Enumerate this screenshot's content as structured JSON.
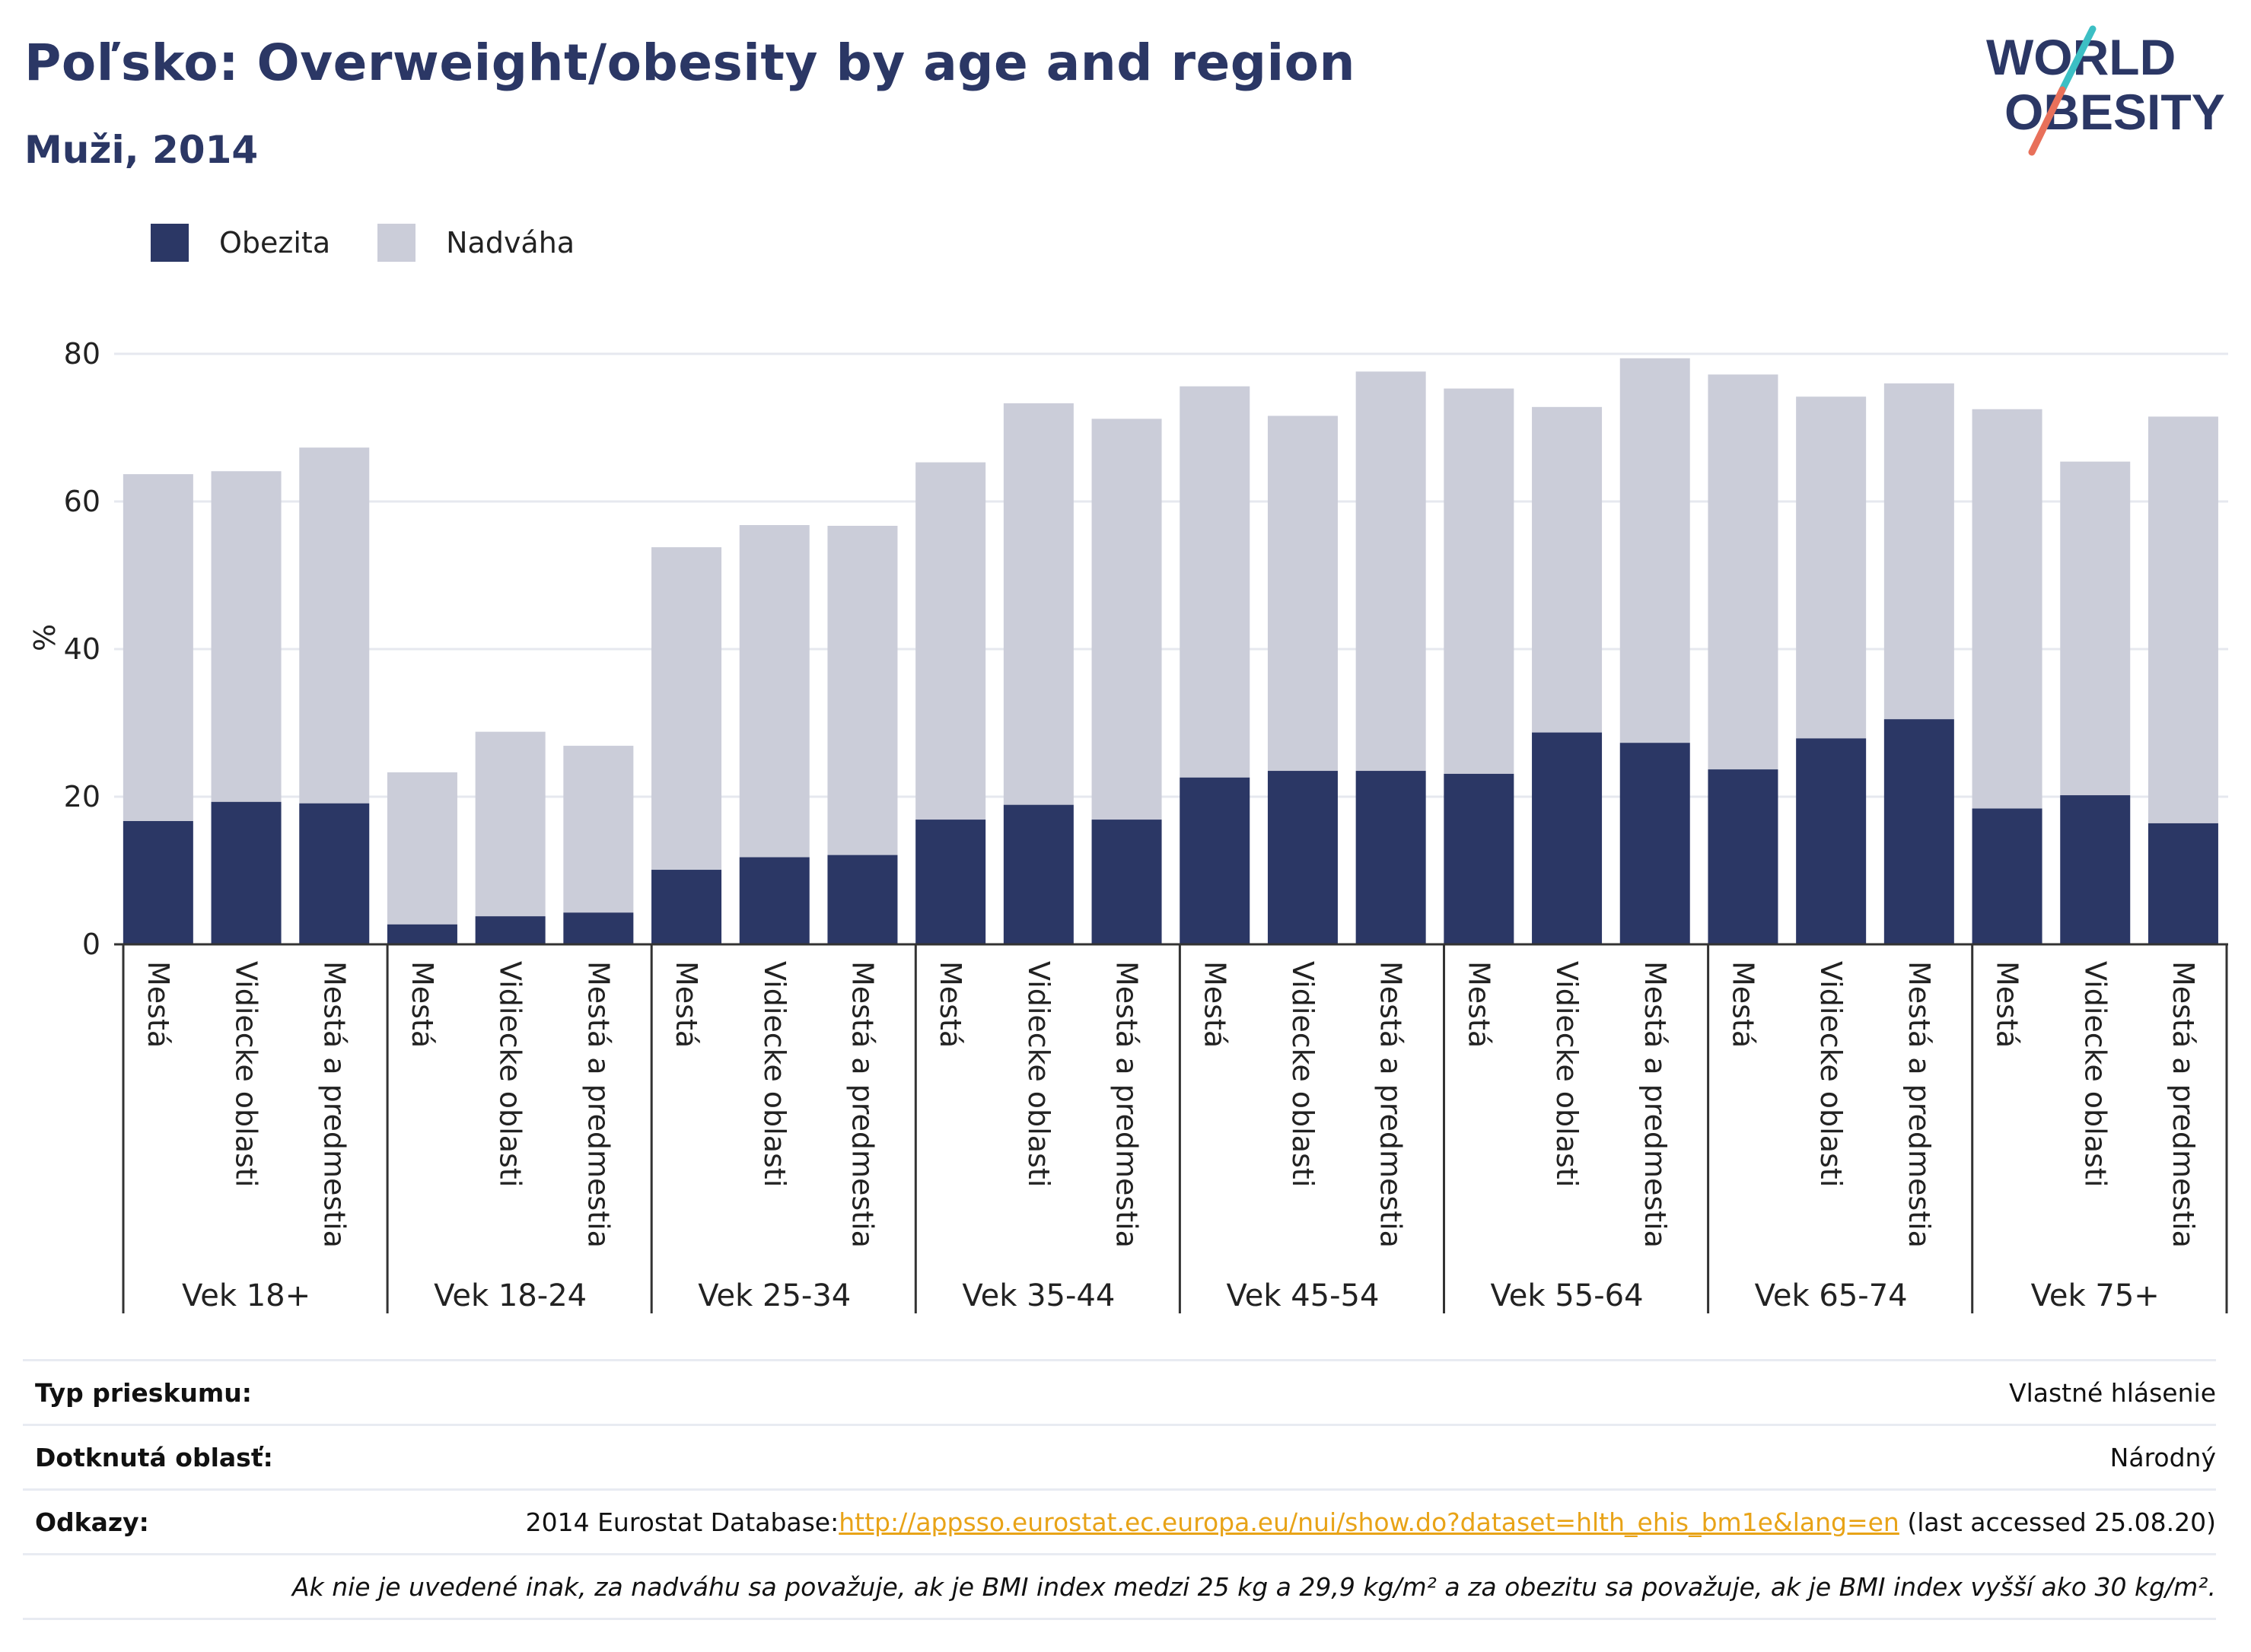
{
  "title": "Poľsko: Overweight/obesity by age and region",
  "subtitle": "Muži, 2014",
  "logo": {
    "line1": "WORLD",
    "line2": "OBESITY"
  },
  "colors": {
    "obesity": "#2b3765",
    "overweight": "#cbcdd9",
    "title": "#2b3765",
    "link": "#e8a317"
  },
  "legend": [
    {
      "label": "Obezita",
      "color": "#2b3765"
    },
    {
      "label": "Nadváha",
      "color": "#cbcdd9"
    }
  ],
  "chart_data": {
    "type": "bar",
    "stacked": true,
    "ylabel": "%",
    "ylim": [
      0,
      80
    ],
    "yticks": [
      0,
      20,
      40,
      60,
      80
    ],
    "grid": true,
    "legend_position": "top-left",
    "groups": [
      {
        "label": "Vek 18+",
        "bars": [
          {
            "category": "Mestá",
            "obesity": 16.7,
            "total": 63.7
          },
          {
            "category": "Vidiecke oblasti",
            "obesity": 19.3,
            "total": 64.1
          },
          {
            "category": "Mestá a predmestia",
            "obesity": 19.1,
            "total": 67.3
          }
        ]
      },
      {
        "label": "Vek 18-24",
        "bars": [
          {
            "category": "Mestá",
            "obesity": 2.7,
            "total": 23.3
          },
          {
            "category": "Vidiecke oblasti",
            "obesity": 3.8,
            "total": 28.8
          },
          {
            "category": "Mestá a predmestia",
            "obesity": 4.3,
            "total": 26.9
          }
        ]
      },
      {
        "label": "Vek 25-34",
        "bars": [
          {
            "category": "Mestá",
            "obesity": 10.1,
            "total": 53.8
          },
          {
            "category": "Vidiecke oblasti",
            "obesity": 11.8,
            "total": 56.8
          },
          {
            "category": "Mestá a predmestia",
            "obesity": 12.1,
            "total": 56.7
          }
        ]
      },
      {
        "label": "Vek 35-44",
        "bars": [
          {
            "category": "Mestá",
            "obesity": 16.9,
            "total": 65.3
          },
          {
            "category": "Vidiecke oblasti",
            "obesity": 18.9,
            "total": 73.3
          },
          {
            "category": "Mestá a predmestia",
            "obesity": 16.9,
            "total": 71.2
          }
        ]
      },
      {
        "label": "Vek 45-54",
        "bars": [
          {
            "category": "Mestá",
            "obesity": 22.6,
            "total": 75.6
          },
          {
            "category": "Vidiecke oblasti",
            "obesity": 23.5,
            "total": 71.6
          },
          {
            "category": "Mestá a predmestia",
            "obesity": 23.5,
            "total": 77.6
          }
        ]
      },
      {
        "label": "Vek 55-64",
        "bars": [
          {
            "category": "Mestá",
            "obesity": 23.1,
            "total": 75.3
          },
          {
            "category": "Vidiecke oblasti",
            "obesity": 28.7,
            "total": 72.8
          },
          {
            "category": "Mestá a predmestia",
            "obesity": 27.3,
            "total": 79.4
          }
        ]
      },
      {
        "label": "Vek 65-74",
        "bars": [
          {
            "category": "Mestá",
            "obesity": 23.7,
            "total": 77.2
          },
          {
            "category": "Vidiecke oblasti",
            "obesity": 27.9,
            "total": 74.2
          },
          {
            "category": "Mestá a predmestia",
            "obesity": 30.5,
            "total": 76.0
          }
        ]
      },
      {
        "label": "Vek 75+",
        "bars": [
          {
            "category": "Mestá",
            "obesity": 18.4,
            "total": 72.5
          },
          {
            "category": "Vidiecke oblasti",
            "obesity": 20.2,
            "total": 65.4
          },
          {
            "category": "Mestá a predmestia",
            "obesity": 16.4,
            "total": 71.5
          }
        ]
      }
    ]
  },
  "meta": {
    "survey_label": "Typ prieskumu:",
    "survey_value": "Vlastné hlásenie",
    "area_label": "Dotknutá oblasť:",
    "area_value": "Národný",
    "refs_label": "Odkazy:",
    "refs_prefix": "2014 Eurostat Database:",
    "refs_link": "http://appsso.eurostat.ec.europa.eu/nui/show.do?dataset=hlth_ehis_bm1e&lang=en",
    "refs_suffix": " (last accessed 25.08.20)",
    "note": "Ak nie je uvedené inak, za nadváhu sa považuje, ak je BMI index medzi 25 kg a 29,9 kg/m² a za obezitu sa považuje, ak je BMI index vyšší ako 30 kg/m²."
  }
}
